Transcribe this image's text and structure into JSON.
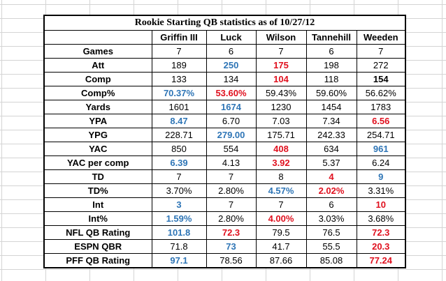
{
  "title": "Rookie Starting QB statistics as of 10/27/12",
  "headers": [
    "",
    "Griffin III",
    "Luck",
    "Wilson",
    "Tannehill",
    "Weeden"
  ],
  "colors": {
    "blue": "#2e75b6",
    "red": "#e0101e"
  },
  "rows": [
    {
      "label": "Games",
      "cells": [
        {
          "v": "7",
          "s": ""
        },
        {
          "v": "6",
          "s": ""
        },
        {
          "v": "7",
          "s": ""
        },
        {
          "v": "6",
          "s": ""
        },
        {
          "v": "7",
          "s": ""
        }
      ]
    },
    {
      "label": "Att",
      "cells": [
        {
          "v": "189",
          "s": ""
        },
        {
          "v": "250",
          "s": "blue"
        },
        {
          "v": "175",
          "s": "red"
        },
        {
          "v": "198",
          "s": ""
        },
        {
          "v": "272",
          "s": ""
        }
      ]
    },
    {
      "label": "Comp",
      "cells": [
        {
          "v": "133",
          "s": ""
        },
        {
          "v": "134",
          "s": ""
        },
        {
          "v": "104",
          "s": "red"
        },
        {
          "v": "118",
          "s": ""
        },
        {
          "v": "154",
          "s": "bold"
        }
      ]
    },
    {
      "label": "Comp%",
      "cells": [
        {
          "v": "70.37%",
          "s": "blue"
        },
        {
          "v": "53.60%",
          "s": "red"
        },
        {
          "v": "59.43%",
          "s": ""
        },
        {
          "v": "59.60%",
          "s": ""
        },
        {
          "v": "56.62%",
          "s": ""
        }
      ]
    },
    {
      "label": "Yards",
      "cells": [
        {
          "v": "1601",
          "s": ""
        },
        {
          "v": "1674",
          "s": "blue"
        },
        {
          "v": "1230",
          "s": ""
        },
        {
          "v": "1454",
          "s": ""
        },
        {
          "v": "1783",
          "s": ""
        }
      ]
    },
    {
      "label": "YPA",
      "cells": [
        {
          "v": "8.47",
          "s": "blue"
        },
        {
          "v": "6.70",
          "s": ""
        },
        {
          "v": "7.03",
          "s": ""
        },
        {
          "v": "7.34",
          "s": ""
        },
        {
          "v": "6.56",
          "s": "red"
        }
      ]
    },
    {
      "label": "YPG",
      "cells": [
        {
          "v": "228.71",
          "s": ""
        },
        {
          "v": "279.00",
          "s": "blue"
        },
        {
          "v": "175.71",
          "s": ""
        },
        {
          "v": "242.33",
          "s": ""
        },
        {
          "v": "254.71",
          "s": ""
        }
      ]
    },
    {
      "label": "YAC",
      "cells": [
        {
          "v": "850",
          "s": ""
        },
        {
          "v": "554",
          "s": ""
        },
        {
          "v": "408",
          "s": "red"
        },
        {
          "v": "634",
          "s": ""
        },
        {
          "v": "961",
          "s": "blue"
        }
      ]
    },
    {
      "label": "YAC per comp",
      "cells": [
        {
          "v": "6.39",
          "s": "blue"
        },
        {
          "v": "4.13",
          "s": ""
        },
        {
          "v": "3.92",
          "s": "red"
        },
        {
          "v": "5.37",
          "s": ""
        },
        {
          "v": "6.24",
          "s": ""
        }
      ]
    },
    {
      "label": "TD",
      "cells": [
        {
          "v": "7",
          "s": ""
        },
        {
          "v": "7",
          "s": ""
        },
        {
          "v": "8",
          "s": ""
        },
        {
          "v": "4",
          "s": "red"
        },
        {
          "v": "9",
          "s": "blue"
        }
      ]
    },
    {
      "label": "TD%",
      "cells": [
        {
          "v": "3.70%",
          "s": ""
        },
        {
          "v": "2.80%",
          "s": ""
        },
        {
          "v": "4.57%",
          "s": "blue"
        },
        {
          "v": "2.02%",
          "s": "red"
        },
        {
          "v": "3.31%",
          "s": ""
        }
      ]
    },
    {
      "label": "Int",
      "cells": [
        {
          "v": "3",
          "s": "blue"
        },
        {
          "v": "7",
          "s": ""
        },
        {
          "v": "7",
          "s": ""
        },
        {
          "v": "6",
          "s": ""
        },
        {
          "v": "10",
          "s": "red"
        }
      ]
    },
    {
      "label": "Int%",
      "cells": [
        {
          "v": "1.59%",
          "s": "blue"
        },
        {
          "v": "2.80%",
          "s": ""
        },
        {
          "v": "4.00%",
          "s": "red"
        },
        {
          "v": "3.03%",
          "s": ""
        },
        {
          "v": "3.68%",
          "s": ""
        }
      ]
    },
    {
      "label": "NFL QB Rating",
      "cells": [
        {
          "v": "101.8",
          "s": "blue"
        },
        {
          "v": "72.3",
          "s": "red"
        },
        {
          "v": "79.5",
          "s": ""
        },
        {
          "v": "76.5",
          "s": ""
        },
        {
          "v": "72.3",
          "s": "red"
        }
      ]
    },
    {
      "label": "ESPN QBR",
      "cells": [
        {
          "v": "71.8",
          "s": ""
        },
        {
          "v": "73",
          "s": "blue"
        },
        {
          "v": "41.7",
          "s": ""
        },
        {
          "v": "55.5",
          "s": ""
        },
        {
          "v": "20.3",
          "s": "red"
        }
      ]
    },
    {
      "label": "PFF QB Rating",
      "cells": [
        {
          "v": "97.1",
          "s": "blue"
        },
        {
          "v": "78.56",
          "s": ""
        },
        {
          "v": "87.66",
          "s": ""
        },
        {
          "v": "85.08",
          "s": ""
        },
        {
          "v": "77.24",
          "s": "red"
        }
      ]
    }
  ]
}
